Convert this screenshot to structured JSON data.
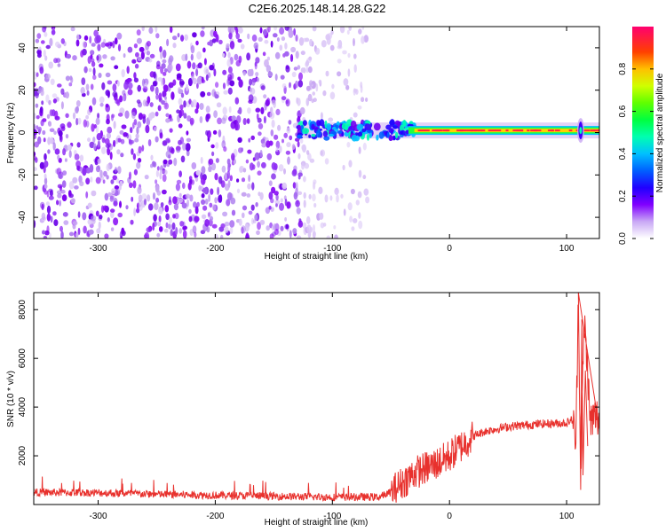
{
  "title": "C2E6.2025.148.14.28.G22",
  "chart_data": [
    {
      "type": "heatmap",
      "xlabel": "Height of straight line (km)",
      "ylabel": "Frequency (Hz)",
      "xlim": [
        -355,
        128
      ],
      "ylim": [
        -50,
        50
      ],
      "xticks": [
        -300,
        -200,
        -100,
        0,
        100
      ],
      "yticks": [
        -40,
        -20,
        0,
        20,
        40
      ],
      "grid": false,
      "description_series": [
        {
          "region": "noise",
          "x_range": [
            -355,
            -70
          ],
          "y_range": [
            -50,
            50
          ]
        },
        {
          "region": "signal_band",
          "center_frequency": 1,
          "x_range": [
            -130,
            128
          ]
        }
      ],
      "colorbar": {
        "label": "Normalized spectral amplitude",
        "ticks": [
          0.0,
          0.2,
          0.4,
          0.6,
          0.8
        ],
        "range": [
          0,
          1
        ],
        "colors": [
          "#ffffff",
          "#c9a8f5",
          "#8000ff",
          "#0000ff",
          "#00c0ff",
          "#00ff80",
          "#40ff00",
          "#c0ff00",
          "#ffc000",
          "#ff3000",
          "#ff0060"
        ]
      }
    },
    {
      "type": "line",
      "xlabel": "Height of straight line (km)",
      "ylabel": "SNR (10 * v/v)",
      "xlim": [
        -355,
        128
      ],
      "ylim": [
        0,
        8700
      ],
      "xticks": [
        -300,
        -200,
        -100,
        0,
        100
      ],
      "yticks": [
        2000,
        4000,
        6000,
        8000
      ],
      "color": "#e8312d",
      "x": [
        -355,
        -300,
        -250,
        -200,
        -150,
        -100,
        -60,
        -50,
        -40,
        -30,
        -20,
        -10,
        0,
        10,
        20,
        30,
        50,
        75,
        100,
        105,
        108,
        110,
        112,
        115,
        118,
        120,
        125,
        128
      ],
      "y": [
        500,
        480,
        420,
        380,
        340,
        300,
        310,
        500,
        900,
        1300,
        1500,
        1700,
        2000,
        2400,
        2800,
        3000,
        3200,
        3300,
        3350,
        3500,
        2500,
        8700,
        1200,
        7600,
        5500,
        3400,
        3600,
        3500
      ]
    }
  ]
}
